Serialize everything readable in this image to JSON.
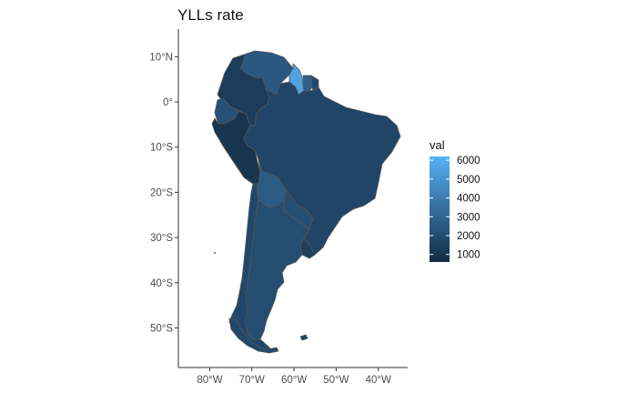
{
  "title": "YLLs rate",
  "y_axis": {
    "ticks": [
      {
        "lat": 10,
        "label": "10°N"
      },
      {
        "lat": 0,
        "label": "0°"
      },
      {
        "lat": -10,
        "label": "10°S"
      },
      {
        "lat": -20,
        "label": "20°S"
      },
      {
        "lat": -30,
        "label": "30°S"
      },
      {
        "lat": -40,
        "label": "40°S"
      },
      {
        "lat": -50,
        "label": "50°S"
      }
    ]
  },
  "x_axis": {
    "ticks": [
      {
        "lon": -80,
        "label": "80°W"
      },
      {
        "lon": -70,
        "label": "70°W"
      },
      {
        "lon": -60,
        "label": "60°W"
      },
      {
        "lon": -50,
        "label": "50°W"
      },
      {
        "lon": -40,
        "label": "40°W"
      }
    ]
  },
  "legend": {
    "title": "val",
    "low_color": "#132b43",
    "high_color": "#56b1f7",
    "min": 600,
    "max": 6200,
    "labels": [
      "6000",
      "5000",
      "4000",
      "3000",
      "2000",
      "1000"
    ],
    "values": [
      6000,
      5000,
      4000,
      3000,
      2000,
      1000
    ]
  },
  "chart_data": {
    "type": "choropleth",
    "title": "YLLs rate",
    "value_name": "val",
    "xlim": [
      -87,
      -32
    ],
    "ylim": [
      -59,
      15
    ],
    "regions": [
      {
        "name": "Colombia",
        "value": 1300
      },
      {
        "name": "Venezuela",
        "value": 2500
      },
      {
        "name": "Guyana",
        "value": 5600
      },
      {
        "name": "Suriname",
        "value": 2800
      },
      {
        "name": "French Guiana",
        "value": 1800
      },
      {
        "name": "Ecuador",
        "value": 2200
      },
      {
        "name": "Peru",
        "value": 1000
      },
      {
        "name": "Brazil",
        "value": 1700
      },
      {
        "name": "Bolivia",
        "value": 2600
      },
      {
        "name": "Paraguay",
        "value": 2100
      },
      {
        "name": "Chile",
        "value": 1800
      },
      {
        "name": "Argentina",
        "value": 2000
      },
      {
        "name": "Uruguay",
        "value": 1500
      },
      {
        "name": "Falkland Islands",
        "value": 1700
      }
    ]
  }
}
